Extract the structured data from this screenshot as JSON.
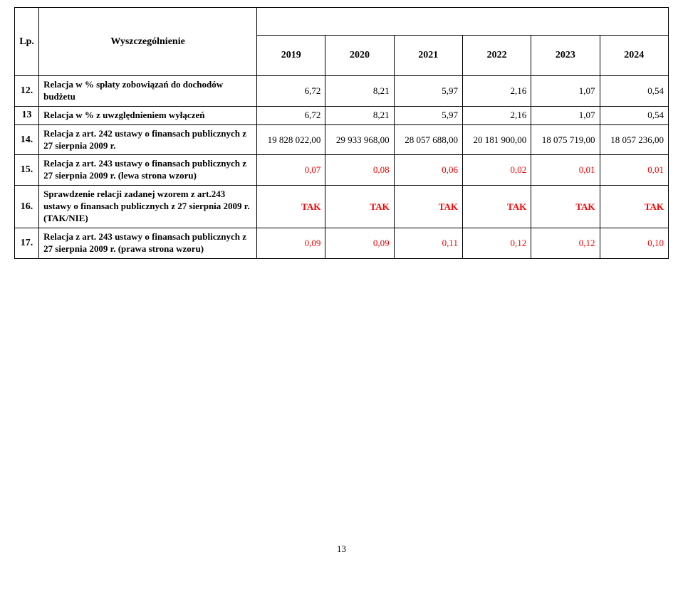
{
  "header": {
    "lp_label": "Lp.",
    "desc_label": "Wyszczególnienie",
    "years": [
      "2019",
      "2020",
      "2021",
      "2022",
      "2023",
      "2024"
    ]
  },
  "rows": [
    {
      "lp": "12.",
      "desc": "Relacja w % spłaty zobowiązań do dochodów budżetu",
      "values": [
        "6,72",
        "8,21",
        "5,97",
        "2,16",
        "1,07",
        "0,54"
      ],
      "red": false
    },
    {
      "lp": "13",
      "desc": "Relacja w % z uwzględnieniem wyłączeń",
      "values": [
        "6,72",
        "8,21",
        "5,97",
        "2,16",
        "1,07",
        "0,54"
      ],
      "red": false
    },
    {
      "lp": "14.",
      "desc": "Relacja z art. 242 ustawy o finansach publicznych z 27 sierpnia 2009 r.",
      "values": [
        "19 828 022,00",
        "29 933 968,00",
        "28 057 688,00",
        "20 181 900,00",
        "18 075 719,00",
        "18 057 236,00"
      ],
      "red": false
    },
    {
      "lp": "15.",
      "desc": "Relacja z art. 243 ustawy o finansach publicznych z 27 sierpnia 2009 r. (lewa strona wzoru)",
      "values": [
        "0,07",
        "0,08",
        "0,06",
        "0,02",
        "0,01",
        "0,01"
      ],
      "red": true
    },
    {
      "lp": "16.",
      "desc": "Sprawdzenie  relacji zadanej wzorem  z art.243 ustawy o finansach publicznych z 27 sierpnia 2009 r. (TAK/NIE)",
      "values": [
        "TAK",
        "TAK",
        "TAK",
        "TAK",
        "TAK",
        "TAK"
      ],
      "red": true,
      "is_tak": true
    },
    {
      "lp": "17.",
      "desc": "Relacja z art. 243 ustawy o finansach publicznych z 27 sierpnia 2009 r. (prawa strona wzoru)",
      "values": [
        "0,09",
        "0,09",
        "0,11",
        "0,12",
        "0,12",
        "0,10"
      ],
      "red": true
    }
  ],
  "page_number": "13",
  "colors": {
    "accent_red": "#ff0000",
    "border": "#000000",
    "background": "#ffffff",
    "text": "#000000"
  }
}
